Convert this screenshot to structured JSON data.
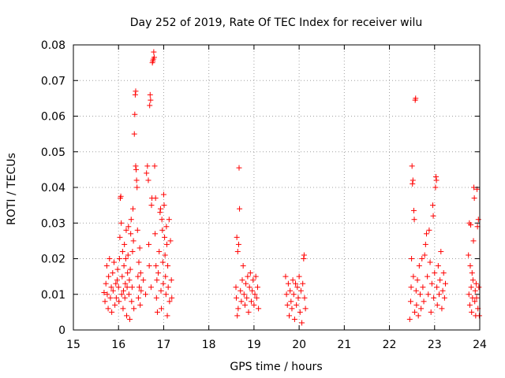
{
  "chart_data": {
    "type": "scatter",
    "title": "Day 252 of 2019, Rate Of TEC Index for receiver wilu",
    "xlabel": "GPS time / hours",
    "ylabel": "ROTI / TECUs",
    "xlim": [
      15,
      24
    ],
    "ylim": [
      0,
      0.08
    ],
    "xticks": [
      15,
      16,
      17,
      18,
      19,
      20,
      21,
      22,
      23,
      24
    ],
    "yticks": [
      0,
      0.01,
      0.02,
      0.03,
      0.04,
      0.05,
      0.06,
      0.07,
      0.08
    ],
    "xtick_labels": [
      "15",
      "16",
      "17",
      "18",
      "19",
      "20",
      "21",
      "22",
      "23",
      "24"
    ],
    "ytick_labels": [
      "0",
      "0.01",
      "0.02",
      "0.03",
      "0.04",
      "0.05",
      "0.06",
      "0.07",
      "0.08"
    ],
    "grid": true,
    "marker": "+",
    "color": "#ff0000",
    "series": [
      {
        "name": "ROTI",
        "points": [
          [
            15.68,
            0.0105
          ],
          [
            15.7,
            0.008
          ],
          [
            15.72,
            0.013
          ],
          [
            15.74,
            0.018
          ],
          [
            15.75,
            0.01
          ],
          [
            15.77,
            0.006
          ],
          [
            15.78,
            0.015
          ],
          [
            15.8,
            0.02
          ],
          [
            15.82,
            0.009
          ],
          [
            15.84,
            0.012
          ],
          [
            15.85,
            0.005
          ],
          [
            15.87,
            0.016
          ],
          [
            15.88,
            0.011
          ],
          [
            15.9,
            0.019
          ],
          [
            15.92,
            0.007
          ],
          [
            15.94,
            0.013
          ],
          [
            15.95,
            0.009
          ],
          [
            15.97,
            0.014
          ],
          [
            15.98,
            0.017
          ],
          [
            16.0,
            0.012
          ],
          [
            16.01,
            0.008
          ],
          [
            16.02,
            0.02
          ],
          [
            16.03,
            0.026
          ],
          [
            16.04,
            0.037
          ],
          [
            16.05,
            0.0375
          ],
          [
            16.06,
            0.03
          ],
          [
            16.07,
            0.01
          ],
          [
            16.08,
            0.015
          ],
          [
            16.09,
            0.022
          ],
          [
            16.1,
            0.006
          ],
          [
            16.11,
            0.011
          ],
          [
            16.12,
            0.018
          ],
          [
            16.13,
            0.024
          ],
          [
            16.14,
            0.009
          ],
          [
            16.15,
            0.013
          ],
          [
            16.16,
            0.02
          ],
          [
            16.17,
            0.028
          ],
          [
            16.18,
            0.004
          ],
          [
            16.19,
            0.012
          ],
          [
            16.2,
            0.016
          ],
          [
            16.21,
            0.021
          ],
          [
            16.22,
            0.029
          ],
          [
            16.23,
            0.01
          ],
          [
            16.24,
            0.014
          ],
          [
            16.25,
            0.003
          ],
          [
            16.26,
            0.017
          ],
          [
            16.27,
            0.027
          ],
          [
            16.28,
            0.031
          ],
          [
            16.29,
            0.008
          ],
          [
            16.3,
            0.012
          ],
          [
            16.31,
            0.022
          ],
          [
            16.32,
            0.034
          ],
          [
            16.33,
            0.025
          ],
          [
            16.34,
            0.006
          ],
          [
            16.35,
            0.055
          ],
          [
            16.36,
            0.0605
          ],
          [
            16.37,
            0.066
          ],
          [
            16.38,
            0.067
          ],
          [
            16.38,
            0.046
          ],
          [
            16.39,
            0.045
          ],
          [
            16.4,
            0.042
          ],
          [
            16.41,
            0.04
          ],
          [
            16.42,
            0.028
          ],
          [
            16.43,
            0.015
          ],
          [
            16.44,
            0.009
          ],
          [
            16.45,
            0.019
          ],
          [
            16.46,
            0.012
          ],
          [
            16.47,
            0.023
          ],
          [
            16.48,
            0.007
          ],
          [
            16.49,
            0.016
          ],
          [
            16.5,
            0.011
          ],
          [
            16.55,
            0.014
          ],
          [
            16.6,
            0.01
          ],
          [
            16.62,
            0.044
          ],
          [
            16.64,
            0.046
          ],
          [
            16.66,
            0.042
          ],
          [
            16.67,
            0.024
          ],
          [
            16.68,
            0.018
          ],
          [
            16.69,
            0.063
          ],
          [
            16.7,
            0.066
          ],
          [
            16.71,
            0.0645
          ],
          [
            16.72,
            0.012
          ],
          [
            16.73,
            0.035
          ],
          [
            16.74,
            0.037
          ],
          [
            16.75,
            0.075
          ],
          [
            16.76,
            0.0755
          ],
          [
            16.77,
            0.076
          ],
          [
            16.78,
            0.078
          ],
          [
            16.79,
            0.0765
          ],
          [
            16.8,
            0.046
          ],
          [
            16.81,
            0.027
          ],
          [
            16.82,
            0.037
          ],
          [
            16.83,
            0.018
          ],
          [
            16.84,
            0.009
          ],
          [
            16.85,
            0.014
          ],
          [
            16.86,
            0.005
          ],
          [
            16.88,
            0.016
          ],
          [
            16.9,
            0.022
          ],
          [
            16.92,
            0.033
          ],
          [
            16.93,
            0.034
          ],
          [
            16.94,
            0.011
          ],
          [
            16.95,
            0.006
          ],
          [
            16.96,
            0.031
          ],
          [
            16.97,
            0.028
          ],
          [
            16.98,
            0.019
          ],
          [
            16.99,
            0.013
          ],
          [
            17.0,
            0.038
          ],
          [
            17.01,
            0.035
          ],
          [
            17.02,
            0.026
          ],
          [
            17.03,
            0.021
          ],
          [
            17.04,
            0.015
          ],
          [
            17.05,
            0.01
          ],
          [
            17.06,
            0.029
          ],
          [
            17.07,
            0.024
          ],
          [
            17.08,
            0.004
          ],
          [
            17.09,
            0.018
          ],
          [
            17.1,
            0.012
          ],
          [
            17.12,
            0.031
          ],
          [
            17.13,
            0.008
          ],
          [
            17.15,
            0.025
          ],
          [
            17.17,
            0.014
          ],
          [
            17.18,
            0.009
          ],
          [
            18.6,
            0.012
          ],
          [
            18.61,
            0.009
          ],
          [
            18.62,
            0.026
          ],
          [
            18.63,
            0.004
          ],
          [
            18.64,
            0.022
          ],
          [
            18.65,
            0.006
          ],
          [
            18.66,
            0.024
          ],
          [
            18.67,
            0.0455
          ],
          [
            18.68,
            0.034
          ],
          [
            18.7,
            0.011
          ],
          [
            18.72,
            0.008
          ],
          [
            18.74,
            0.014
          ],
          [
            18.76,
            0.018
          ],
          [
            18.78,
            0.01
          ],
          [
            18.8,
            0.007
          ],
          [
            18.82,
            0.013
          ],
          [
            18.84,
            0.009
          ],
          [
            18.86,
            0.015
          ],
          [
            18.88,
            0.005
          ],
          [
            18.9,
            0.012
          ],
          [
            18.92,
            0.016
          ],
          [
            18.94,
            0.008
          ],
          [
            18.96,
            0.011
          ],
          [
            18.98,
            0.014
          ],
          [
            19.0,
            0.007
          ],
          [
            19.02,
            0.01
          ],
          [
            19.04,
            0.015
          ],
          [
            19.06,
            0.009
          ],
          [
            19.08,
            0.012
          ],
          [
            19.1,
            0.006
          ],
          [
            19.7,
            0.015
          ],
          [
            19.72,
            0.01
          ],
          [
            19.74,
            0.007
          ],
          [
            19.76,
            0.013
          ],
          [
            19.78,
            0.004
          ],
          [
            19.8,
            0.011
          ],
          [
            19.82,
            0.008
          ],
          [
            19.84,
            0.006
          ],
          [
            19.86,
            0.014
          ],
          [
            19.88,
            0.01
          ],
          [
            19.9,
            0.003
          ],
          [
            19.92,
            0.013
          ],
          [
            19.94,
            0.007
          ],
          [
            19.96,
            0.012
          ],
          [
            19.98,
            0.009
          ],
          [
            20.0,
            0.015
          ],
          [
            20.02,
            0.005
          ],
          [
            20.04,
            0.011
          ],
          [
            20.06,
            0.002
          ],
          [
            20.08,
            0.013
          ],
          [
            20.1,
            0.02
          ],
          [
            20.11,
            0.021
          ],
          [
            20.12,
            0.009
          ],
          [
            20.14,
            0.006
          ],
          [
            22.45,
            0.003
          ],
          [
            22.47,
            0.008
          ],
          [
            22.48,
            0.012
          ],
          [
            22.49,
            0.02
          ],
          [
            22.5,
            0.046
          ],
          [
            22.51,
            0.041
          ],
          [
            22.52,
            0.042
          ],
          [
            22.53,
            0.015
          ],
          [
            22.54,
            0.0335
          ],
          [
            22.55,
            0.031
          ],
          [
            22.56,
            0.005
          ],
          [
            22.57,
            0.0645
          ],
          [
            22.58,
            0.065
          ],
          [
            22.59,
            0.011
          ],
          [
            22.6,
            0.007
          ],
          [
            22.62,
            0.014
          ],
          [
            22.64,
            0.004
          ],
          [
            22.66,
            0.018
          ],
          [
            22.68,
            0.01
          ],
          [
            22.7,
            0.006
          ],
          [
            22.72,
            0.02
          ],
          [
            22.74,
            0.012
          ],
          [
            22.76,
            0.008
          ],
          [
            22.78,
            0.021
          ],
          [
            22.8,
            0.024
          ],
          [
            22.82,
            0.027
          ],
          [
            22.84,
            0.015
          ],
          [
            22.86,
            0.01
          ],
          [
            22.88,
            0.028
          ],
          [
            22.9,
            0.019
          ],
          [
            22.92,
            0.005
          ],
          [
            22.94,
            0.013
          ],
          [
            22.96,
            0.035
          ],
          [
            22.97,
            0.032
          ],
          [
            22.98,
            0.009
          ],
          [
            23.0,
            0.016
          ],
          [
            23.02,
            0.04
          ],
          [
            23.03,
            0.043
          ],
          [
            23.04,
            0.042
          ],
          [
            23.05,
            0.012
          ],
          [
            23.06,
            0.007
          ],
          [
            23.08,
            0.018
          ],
          [
            23.1,
            0.01
          ],
          [
            23.12,
            0.014
          ],
          [
            23.14,
            0.022
          ],
          [
            23.16,
            0.006
          ],
          [
            23.18,
            0.011
          ],
          [
            23.2,
            0.016
          ],
          [
            23.22,
            0.009
          ],
          [
            23.24,
            0.013
          ],
          [
            23.75,
            0.021
          ],
          [
            23.76,
            0.01
          ],
          [
            23.77,
            0.03
          ],
          [
            23.78,
            0.007
          ],
          [
            23.79,
            0.018
          ],
          [
            23.8,
            0.0295
          ],
          [
            23.81,
            0.012
          ],
          [
            23.82,
            0.005
          ],
          [
            23.83,
            0.016
          ],
          [
            23.84,
            0.009
          ],
          [
            23.85,
            0.014
          ],
          [
            23.86,
            0.025
          ],
          [
            23.87,
            0.04
          ],
          [
            23.88,
            0.037
          ],
          [
            23.89,
            0.008
          ],
          [
            23.9,
            0.011
          ],
          [
            23.91,
            0.004
          ],
          [
            23.92,
            0.013
          ],
          [
            23.93,
            0.009
          ],
          [
            23.94,
            0.0395
          ],
          [
            23.95,
            0.029
          ],
          [
            23.96,
            0.006
          ],
          [
            23.97,
            0.031
          ],
          [
            23.98,
            0.012
          ],
          [
            23.99,
            0.004
          ]
        ]
      }
    ]
  }
}
